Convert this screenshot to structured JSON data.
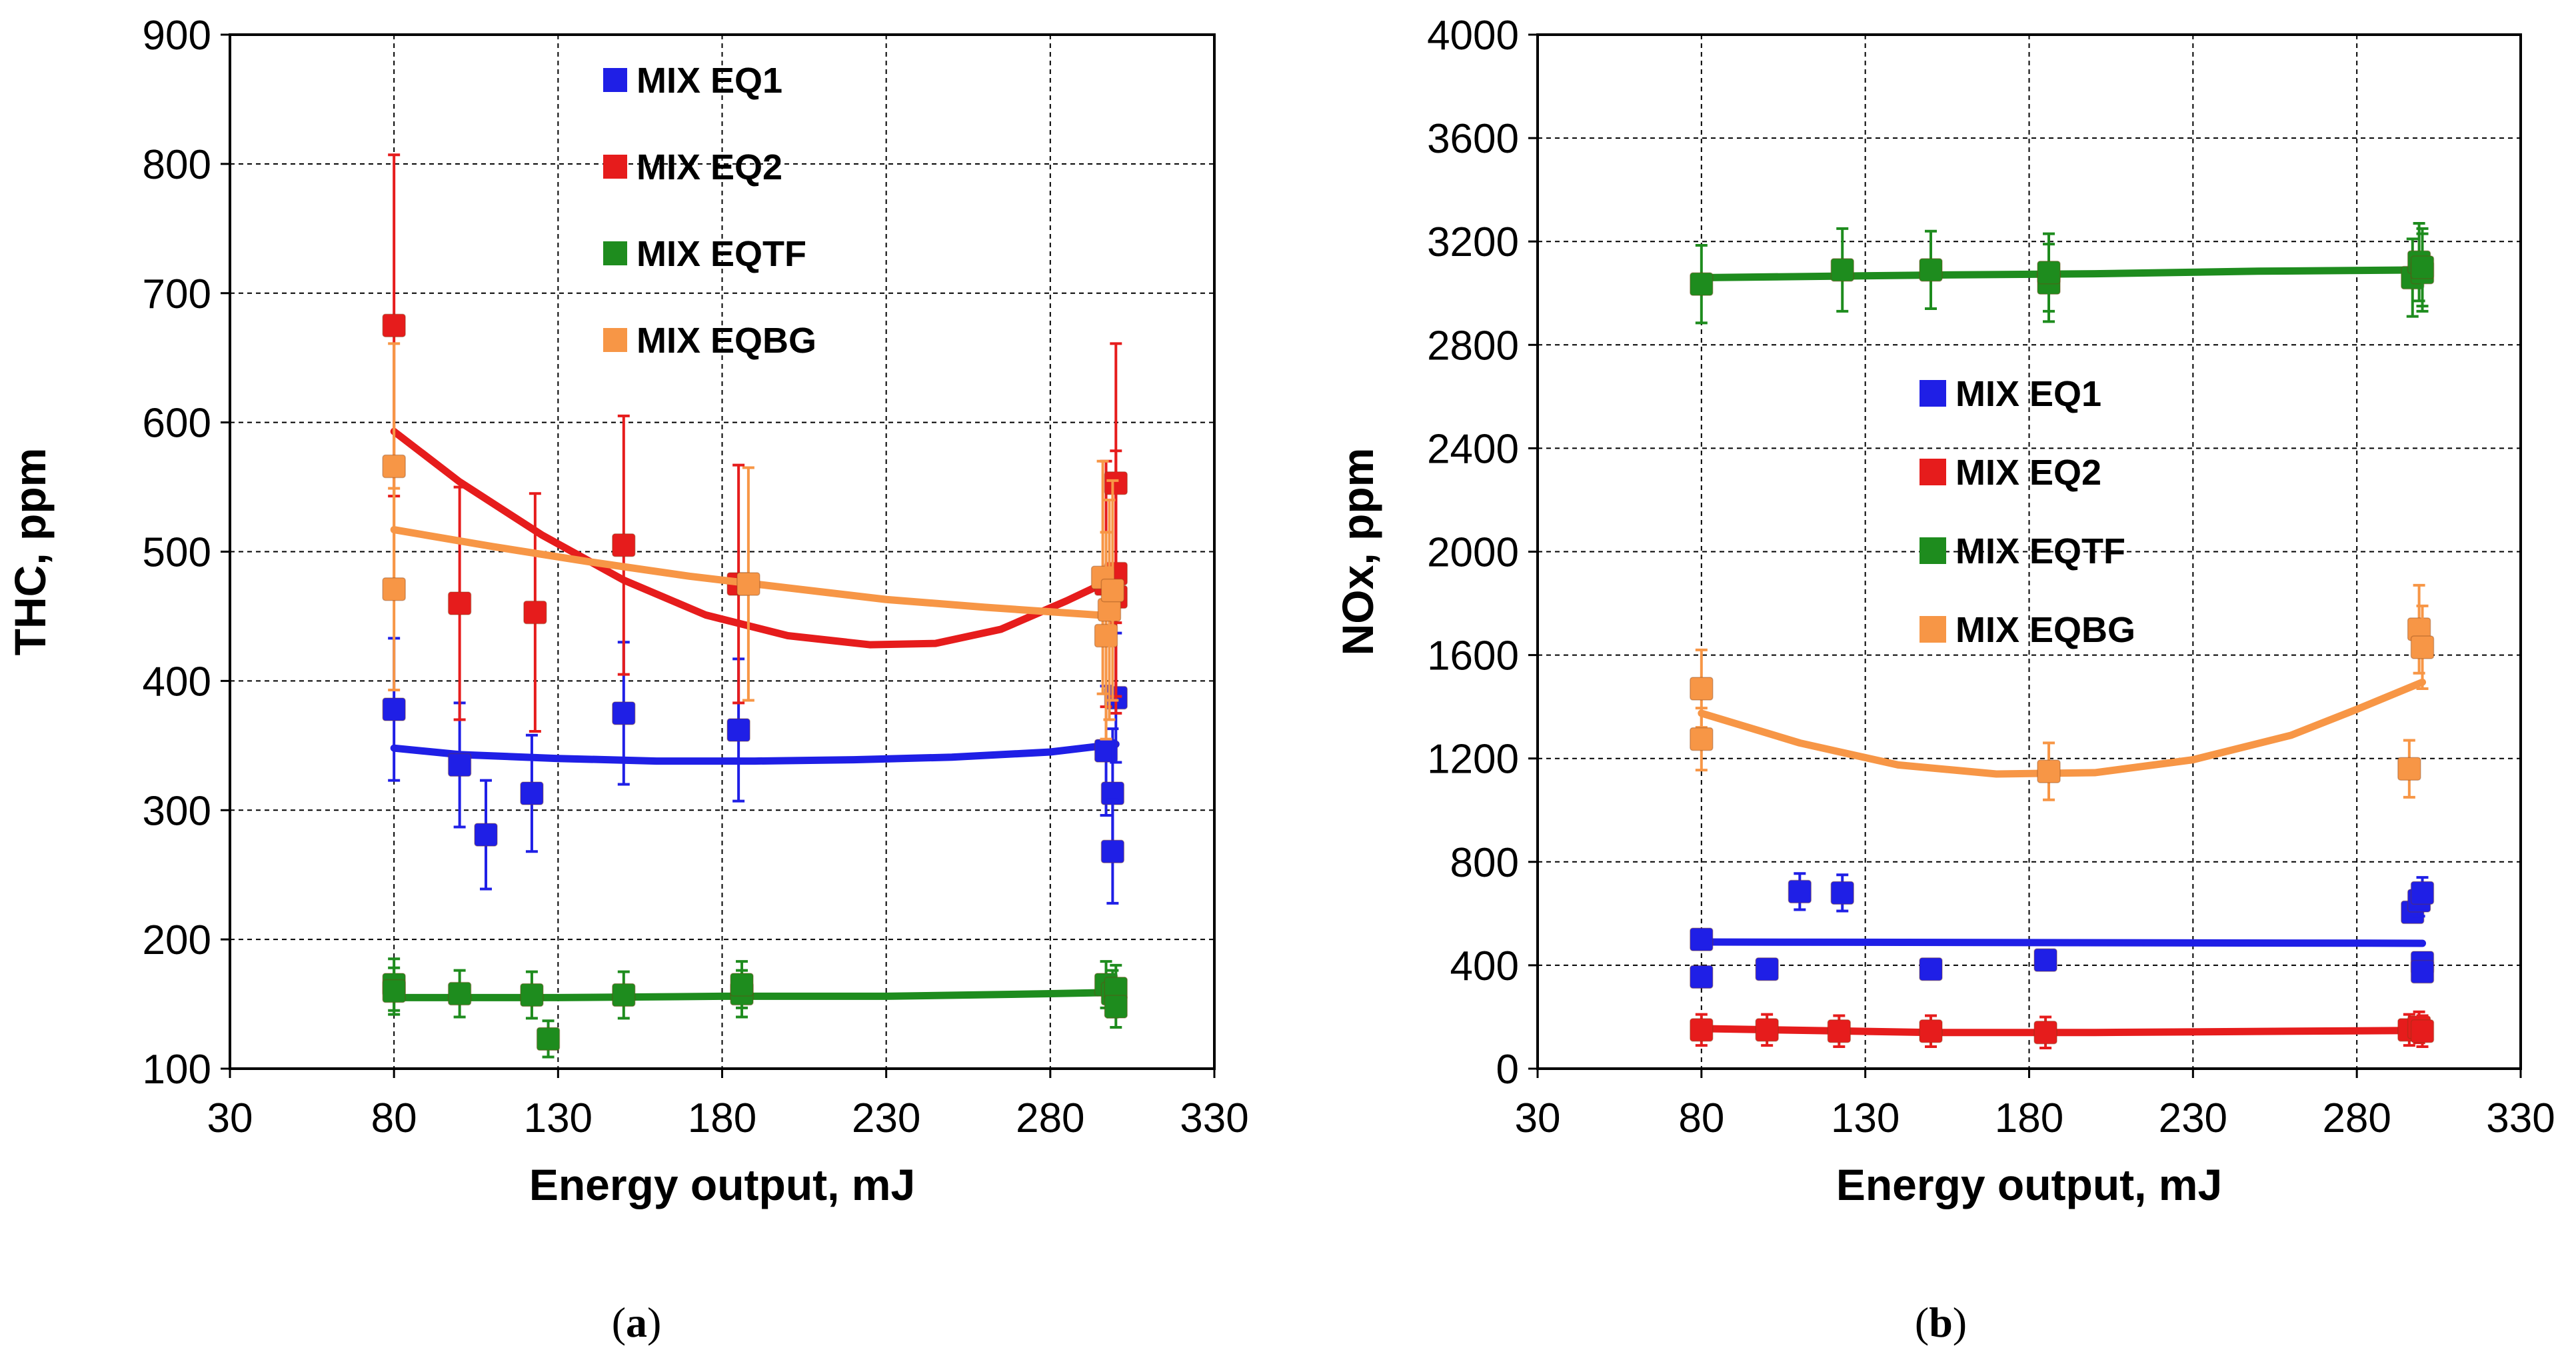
{
  "chart_data": [
    {
      "type": "scatter",
      "panel_label": "a",
      "xlabel": "Energy output, mJ",
      "ylabel": "THC, ppm",
      "xlim": [
        30,
        330
      ],
      "ylim": [
        100,
        900
      ],
      "xticks": [
        30,
        80,
        130,
        180,
        230,
        280,
        330
      ],
      "yticks": [
        100,
        200,
        300,
        400,
        500,
        600,
        700,
        800,
        900
      ],
      "grid": true,
      "legend_position": "top-center",
      "series": [
        {
          "name": "MIX EQ1",
          "color": "#1f1fe6",
          "points": [
            {
              "x": 80,
              "y": 378,
              "err": 55
            },
            {
              "x": 100,
              "y": 335,
              "err": 48
            },
            {
              "x": 108,
              "y": 281,
              "err": 42
            },
            {
              "x": 122,
              "y": 313,
              "err": 45
            },
            {
              "x": 150,
              "y": 375,
              "err": 55
            },
            {
              "x": 185,
              "y": 362,
              "err": 55
            },
            {
              "x": 297,
              "y": 346,
              "err": 50
            },
            {
              "x": 300,
              "y": 387,
              "err": 50
            },
            {
              "x": 299,
              "y": 313,
              "err": 50
            },
            {
              "x": 299,
              "y": 268,
              "err": 40
            }
          ],
          "trend": [
            [
              80,
              348
            ],
            [
              100,
              343
            ],
            [
              130,
              340
            ],
            [
              160,
              338
            ],
            [
              190,
              338
            ],
            [
              220,
              339
            ],
            [
              250,
              341
            ],
            [
              280,
              345
            ],
            [
              300,
              351
            ]
          ]
        },
        {
          "name": "MIX EQ2",
          "color": "#e61c1c",
          "points": [
            {
              "x": 80,
              "y": 675,
              "err": 132
            },
            {
              "x": 100,
              "y": 460,
              "err": 90
            },
            {
              "x": 123,
              "y": 453,
              "err": 92
            },
            {
              "x": 150,
              "y": 505,
              "err": 100
            },
            {
              "x": 185,
              "y": 475,
              "err": 92
            },
            {
              "x": 297,
              "y": 475,
              "err": 95
            },
            {
              "x": 300,
              "y": 553,
              "err": 108
            },
            {
              "x": 300,
              "y": 483,
              "err": 95
            },
            {
              "x": 300,
              "y": 465,
              "err": 90
            }
          ],
          "trend": [
            [
              80,
              593
            ],
            [
              100,
              554
            ],
            [
              125,
              513
            ],
            [
              150,
              478
            ],
            [
              175,
              451
            ],
            [
              200,
              435
            ],
            [
              225,
              428
            ],
            [
              245,
              429
            ],
            [
              265,
              440
            ],
            [
              285,
              462
            ],
            [
              300,
              480
            ]
          ]
        },
        {
          "name": "MIX EQTF",
          "color": "#1e8c1e",
          "points": [
            {
              "x": 80,
              "y": 165,
              "err": 20
            },
            {
              "x": 80,
              "y": 160,
              "err": 18
            },
            {
              "x": 100,
              "y": 158,
              "err": 18
            },
            {
              "x": 122,
              "y": 157,
              "err": 18
            },
            {
              "x": 127,
              "y": 123,
              "err": 14
            },
            {
              "x": 150,
              "y": 157,
              "err": 18
            },
            {
              "x": 186,
              "y": 158,
              "err": 18
            },
            {
              "x": 186,
              "y": 165,
              "err": 18
            },
            {
              "x": 297,
              "y": 165,
              "err": 18
            },
            {
              "x": 299,
              "y": 158,
              "err": 18
            },
            {
              "x": 300,
              "y": 162,
              "err": 18
            },
            {
              "x": 300,
              "y": 148,
              "err": 16
            }
          ],
          "trend": [
            [
              80,
              155
            ],
            [
              130,
              155
            ],
            [
              180,
              156
            ],
            [
              230,
              156
            ],
            [
              280,
              158
            ],
            [
              300,
              159
            ]
          ]
        },
        {
          "name": "MIX EQBG",
          "color": "#f79646",
          "points": [
            {
              "x": 80,
              "y": 566,
              "err": 95
            },
            {
              "x": 80,
              "y": 471,
              "err": 78
            },
            {
              "x": 188,
              "y": 475,
              "err": 90
            },
            {
              "x": 296,
              "y": 480,
              "err": 90
            },
            {
              "x": 297,
              "y": 435,
              "err": 80
            },
            {
              "x": 298,
              "y": 455,
              "err": 85
            },
            {
              "x": 299,
              "y": 470,
              "err": 85
            }
          ],
          "trend": [
            [
              80,
              517
            ],
            [
              110,
              504
            ],
            [
              140,
              492
            ],
            [
              170,
              481
            ],
            [
              200,
              472
            ],
            [
              230,
              463
            ],
            [
              260,
              457
            ],
            [
              300,
              450
            ]
          ]
        }
      ]
    },
    {
      "type": "scatter",
      "panel_label": "b",
      "xlabel": "Energy output, mJ",
      "ylabel": "NOx, ppm",
      "xlim": [
        30,
        330
      ],
      "ylim": [
        0,
        4000
      ],
      "xticks": [
        30,
        80,
        130,
        180,
        230,
        280,
        330
      ],
      "yticks": [
        0,
        400,
        800,
        1200,
        1600,
        2000,
        2400,
        2800,
        3200,
        3600,
        4000
      ],
      "grid": true,
      "legend_position": "center",
      "series": [
        {
          "name": "MIX EQ1",
          "color": "#1f1fe6",
          "points": [
            {
              "x": 80,
              "y": 500,
              "err": 0
            },
            {
              "x": 80,
              "y": 355,
              "err": 0
            },
            {
              "x": 100,
              "y": 385,
              "err": 0
            },
            {
              "x": 110,
              "y": 685,
              "err": 70
            },
            {
              "x": 123,
              "y": 680,
              "err": 70
            },
            {
              "x": 150,
              "y": 385,
              "err": 0
            },
            {
              "x": 185,
              "y": 420,
              "err": 0
            },
            {
              "x": 297,
              "y": 605,
              "err": 0
            },
            {
              "x": 299,
              "y": 650,
              "err": 60
            },
            {
              "x": 300,
              "y": 680,
              "err": 60
            },
            {
              "x": 300,
              "y": 410,
              "err": 0
            },
            {
              "x": 300,
              "y": 375,
              "err": 0
            }
          ],
          "trend": [
            [
              80,
              490
            ],
            [
              300,
              485
            ]
          ]
        },
        {
          "name": "MIX EQ2",
          "color": "#e61c1c",
          "points": [
            {
              "x": 80,
              "y": 150,
              "err": 60
            },
            {
              "x": 100,
              "y": 150,
              "err": 60
            },
            {
              "x": 122,
              "y": 145,
              "err": 60
            },
            {
              "x": 150,
              "y": 145,
              "err": 60
            },
            {
              "x": 185,
              "y": 140,
              "err": 60
            },
            {
              "x": 296,
              "y": 150,
              "err": 60
            },
            {
              "x": 299,
              "y": 160,
              "err": 60
            },
            {
              "x": 300,
              "y": 145,
              "err": 60
            }
          ],
          "trend": [
            [
              80,
              155
            ],
            [
              150,
              140
            ],
            [
              200,
              140
            ],
            [
              300,
              148
            ]
          ]
        },
        {
          "name": "MIX EQTF",
          "color": "#1e8c1e",
          "points": [
            {
              "x": 80,
              "y": 3035,
              "err": 150
            },
            {
              "x": 123,
              "y": 3090,
              "err": 160
            },
            {
              "x": 150,
              "y": 3090,
              "err": 150
            },
            {
              "x": 186,
              "y": 3040,
              "err": 150
            },
            {
              "x": 186,
              "y": 3080,
              "err": 150
            },
            {
              "x": 297,
              "y": 3060,
              "err": 150
            },
            {
              "x": 299,
              "y": 3120,
              "err": 150
            },
            {
              "x": 300,
              "y": 3080,
              "err": 150
            },
            {
              "x": 300,
              "y": 3100,
              "err": 150
            }
          ],
          "trend": [
            [
              80,
              3060
            ],
            [
              150,
              3070
            ],
            [
              200,
              3075
            ],
            [
              250,
              3085
            ],
            [
              300,
              3090
            ]
          ]
        },
        {
          "name": "MIX EQBG",
          "color": "#f79646",
          "points": [
            {
              "x": 80,
              "y": 1470,
              "err": 150
            },
            {
              "x": 80,
              "y": 1275,
              "err": 120
            },
            {
              "x": 186,
              "y": 1150,
              "err": 110
            },
            {
              "x": 296,
              "y": 1160,
              "err": 110
            },
            {
              "x": 299,
              "y": 1700,
              "err": 170
            },
            {
              "x": 300,
              "y": 1630,
              "err": 160
            }
          ],
          "trend": [
            [
              80,
              1375
            ],
            [
              110,
              1260
            ],
            [
              140,
              1175
            ],
            [
              170,
              1140
            ],
            [
              200,
              1145
            ],
            [
              230,
              1195
            ],
            [
              260,
              1290
            ],
            [
              280,
              1390
            ],
            [
              300,
              1495
            ]
          ]
        }
      ]
    }
  ],
  "captions": [
    "(a)",
    "(b)"
  ]
}
